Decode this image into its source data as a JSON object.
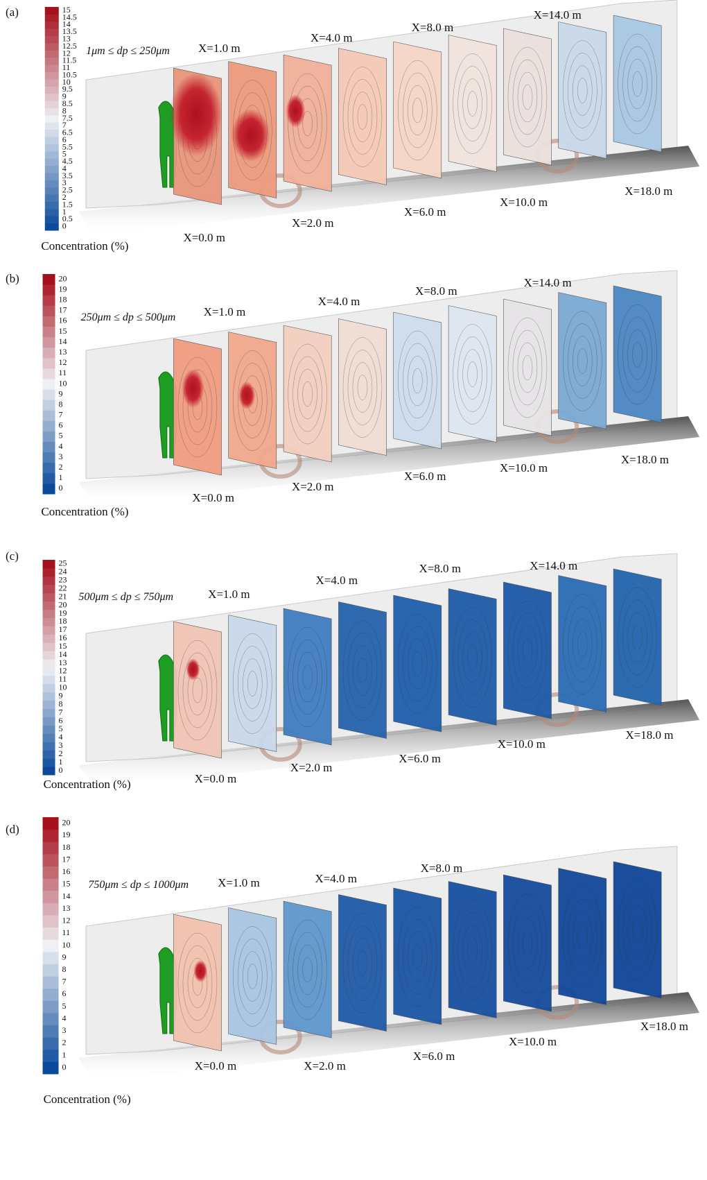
{
  "panels": [
    {
      "label": "(a)",
      "size_range": "1μm ≤ dp ≤ 250μm",
      "colorbar_title": "Concentration (%)",
      "colorbar_ticks": [
        0,
        0.5,
        1,
        1.5,
        2,
        2.5,
        3,
        3.5,
        4,
        4.5,
        5,
        5.5,
        6,
        6.5,
        7,
        7.5,
        8,
        8.5,
        9,
        9.5,
        10,
        10.5,
        11,
        11.5,
        12,
        12.5,
        13,
        13.5,
        14,
        14.5,
        15
      ],
      "plane_labels": [
        "X=0.0 m",
        "X=1.0 m",
        "X=2.0 m",
        "X=4.0 m",
        "X=6.0 m",
        "X=8.0 m",
        "X=10.0 m",
        "X=14.0 m",
        "X=18.0 m"
      ]
    },
    {
      "label": "(b)",
      "size_range": "250μm ≤ dp ≤ 500μm",
      "colorbar_title": "Concentration (%)",
      "colorbar_ticks": [
        0,
        1,
        2,
        3,
        4,
        5,
        6,
        7,
        8,
        9,
        10,
        11,
        12,
        13,
        14,
        15,
        16,
        17,
        18,
        19,
        20
      ],
      "plane_labels": [
        "X=0.0 m",
        "X=1.0 m",
        "X=2.0 m",
        "X=4.0 m",
        "X=6.0 m",
        "X=8.0 m",
        "X=10.0 m",
        "X=14.0 m",
        "X=18.0 m"
      ]
    },
    {
      "label": "(c)",
      "size_range": "500μm ≤ dp ≤ 750μm",
      "colorbar_title": "Concentration (%)",
      "colorbar_ticks": [
        0,
        1,
        2,
        3,
        4,
        5,
        6,
        7,
        8,
        9,
        10,
        11,
        12,
        13,
        14,
        15,
        16,
        17,
        18,
        19,
        20,
        21,
        22,
        23,
        24,
        25
      ],
      "plane_labels": [
        "X=0.0 m",
        "X=1.0 m",
        "X=2.0 m",
        "X=4.0 m",
        "X=6.0 m",
        "X=8.0 m",
        "X=10.0 m",
        "X=14.0 m",
        "X=18.0 m"
      ]
    },
    {
      "label": "(d)",
      "size_range": "750μm ≤ dp ≤ 1000μm",
      "colorbar_title": "Concentration (%)",
      "colorbar_ticks": [
        0,
        1,
        2,
        3,
        4,
        5,
        6,
        7,
        8,
        9,
        10,
        11,
        12,
        13,
        14,
        15,
        16,
        17,
        18,
        19,
        20
      ],
      "plane_labels": [
        "X=0.0 m",
        "X=1.0 m",
        "X=2.0 m",
        "X=4.0 m",
        "X=6.0 m",
        "X=8.0 m",
        "X=10.0 m",
        "X=18.0 m"
      ]
    }
  ]
}
